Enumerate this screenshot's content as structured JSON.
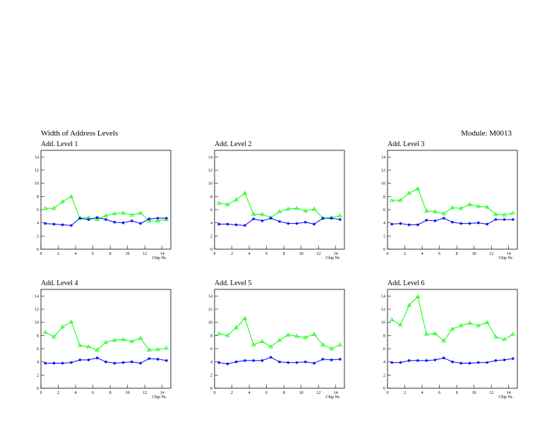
{
  "header": {
    "title": "Width of Address Levels",
    "module": "Module: M0013"
  },
  "chart_data": [
    {
      "type": "line",
      "title": "Add. Level 1",
      "xlabel": "Chip Nr.",
      "x": [
        0.5,
        1.5,
        2.5,
        3.5,
        4.5,
        5.5,
        6.5,
        7.5,
        8.5,
        9.5,
        10.5,
        11.5,
        12.5,
        13.5,
        14.5
      ],
      "xlim": [
        0,
        15
      ],
      "ylim": [
        0,
        15
      ],
      "xticks": [
        0,
        2,
        4,
        6,
        8,
        10,
        12,
        14
      ],
      "yticks": [
        0,
        2,
        4,
        6,
        8,
        10,
        12,
        14
      ],
      "series": [
        {
          "color": "#00ff00",
          "marker": "triangle",
          "values": [
            6.2,
            6.2,
            7.2,
            8.0,
            4.7,
            4.8,
            4.5,
            5.1,
            5.4,
            5.5,
            5.2,
            5.5,
            4.3,
            4.3,
            4.5
          ]
        },
        {
          "color": "#0000ff",
          "marker": "star",
          "values": [
            3.9,
            3.8,
            3.7,
            3.6,
            4.7,
            4.5,
            4.8,
            4.5,
            4.1,
            4.0,
            4.3,
            3.9,
            4.6,
            4.7,
            4.7
          ]
        }
      ]
    },
    {
      "type": "line",
      "title": "Add. Level 2",
      "xlabel": "Chip Nr.",
      "x": [
        0.5,
        1.5,
        2.5,
        3.5,
        4.5,
        5.5,
        6.5,
        7.5,
        8.5,
        9.5,
        10.5,
        11.5,
        12.5,
        13.5,
        14.5
      ],
      "xlim": [
        0,
        15
      ],
      "ylim": [
        0,
        15
      ],
      "xticks": [
        0,
        2,
        4,
        6,
        8,
        10,
        12,
        14
      ],
      "yticks": [
        0,
        2,
        4,
        6,
        8,
        10,
        12,
        14
      ],
      "series": [
        {
          "color": "#00ff00",
          "marker": "triangle",
          "values": [
            7.0,
            6.8,
            7.5,
            8.5,
            5.3,
            5.3,
            4.8,
            5.7,
            6.1,
            6.2,
            5.8,
            6.1,
            4.7,
            4.8,
            5.1
          ]
        },
        {
          "color": "#0000ff",
          "marker": "star",
          "values": [
            3.8,
            3.8,
            3.7,
            3.6,
            4.6,
            4.3,
            4.7,
            4.2,
            3.9,
            3.9,
            4.1,
            3.8,
            4.7,
            4.7,
            4.5
          ]
        }
      ]
    },
    {
      "type": "line",
      "title": "Add. Level 3",
      "xlabel": "Chip Nr.",
      "x": [
        0.5,
        1.5,
        2.5,
        3.5,
        4.5,
        5.5,
        6.5,
        7.5,
        8.5,
        9.5,
        10.5,
        11.5,
        12.5,
        13.5,
        14.5
      ],
      "xlim": [
        0,
        15
      ],
      "ylim": [
        0,
        15
      ],
      "xticks": [
        0,
        2,
        4,
        6,
        8,
        10,
        12,
        14
      ],
      "yticks": [
        0,
        2,
        4,
        6,
        8,
        10,
        12,
        14
      ],
      "series": [
        {
          "color": "#00ff00",
          "marker": "triangle",
          "values": [
            7.4,
            7.4,
            8.5,
            9.2,
            5.8,
            5.7,
            5.4,
            6.3,
            6.2,
            6.8,
            6.5,
            6.4,
            5.3,
            5.2,
            5.5
          ]
        },
        {
          "color": "#0000ff",
          "marker": "star",
          "values": [
            3.8,
            3.9,
            3.7,
            3.7,
            4.4,
            4.3,
            4.7,
            4.1,
            3.9,
            3.9,
            4.0,
            3.8,
            4.5,
            4.5,
            4.5
          ]
        }
      ]
    },
    {
      "type": "line",
      "title": "Add. Level 4",
      "xlabel": "Chip Nr.",
      "x": [
        0.5,
        1.5,
        2.5,
        3.5,
        4.5,
        5.5,
        6.5,
        7.5,
        8.5,
        9.5,
        10.5,
        11.5,
        12.5,
        13.5,
        14.5
      ],
      "xlim": [
        0,
        15
      ],
      "ylim": [
        0,
        15
      ],
      "xticks": [
        0,
        2,
        4,
        6,
        8,
        10,
        12,
        14
      ],
      "yticks": [
        0,
        2,
        4,
        6,
        8,
        10,
        12,
        14
      ],
      "series": [
        {
          "color": "#00ff00",
          "marker": "triangle",
          "values": [
            8.5,
            7.8,
            9.3,
            10.1,
            6.5,
            6.3,
            5.8,
            7.0,
            7.3,
            7.4,
            7.1,
            7.6,
            5.8,
            5.9,
            6.1
          ]
        },
        {
          "color": "#0000ff",
          "marker": "star",
          "values": [
            3.8,
            3.8,
            3.8,
            3.9,
            4.3,
            4.3,
            4.6,
            4.0,
            3.8,
            3.9,
            4.0,
            3.8,
            4.5,
            4.4,
            4.2
          ]
        }
      ]
    },
    {
      "type": "line",
      "title": "Add. Level 5",
      "xlabel": "Chip Nr.",
      "x": [
        0.5,
        1.5,
        2.5,
        3.5,
        4.5,
        5.5,
        6.5,
        7.5,
        8.5,
        9.5,
        10.5,
        11.5,
        12.5,
        13.5,
        14.5
      ],
      "xlim": [
        0,
        15
      ],
      "ylim": [
        0,
        15
      ],
      "xticks": [
        0,
        2,
        4,
        6,
        8,
        10,
        12,
        14
      ],
      "yticks": [
        0,
        2,
        4,
        6,
        8,
        10,
        12,
        14
      ],
      "series": [
        {
          "color": "#00ff00",
          "marker": "triangle",
          "values": [
            8.3,
            8.0,
            9.2,
            10.6,
            6.6,
            7.1,
            6.3,
            7.3,
            8.1,
            7.9,
            7.7,
            8.2,
            6.6,
            6.0,
            6.6
          ]
        },
        {
          "color": "#0000ff",
          "marker": "star",
          "values": [
            3.9,
            3.7,
            4.0,
            4.2,
            4.2,
            4.2,
            4.7,
            4.0,
            3.9,
            3.9,
            4.0,
            3.8,
            4.4,
            4.3,
            4.4
          ]
        }
      ]
    },
    {
      "type": "line",
      "title": "Add. Level 6",
      "xlabel": "Chip Nr.",
      "x": [
        0.5,
        1.5,
        2.5,
        3.5,
        4.5,
        5.5,
        6.5,
        7.5,
        8.5,
        9.5,
        10.5,
        11.5,
        12.5,
        13.5,
        14.5
      ],
      "xlim": [
        0,
        15
      ],
      "ylim": [
        0,
        15
      ],
      "xticks": [
        0,
        2,
        4,
        6,
        8,
        10,
        12,
        14
      ],
      "yticks": [
        0,
        2,
        4,
        6,
        8,
        10,
        12,
        14
      ],
      "series": [
        {
          "color": "#00ff00",
          "marker": "triangle",
          "values": [
            10.4,
            9.6,
            12.6,
            13.9,
            8.2,
            8.3,
            7.2,
            9.0,
            9.5,
            9.9,
            9.5,
            10.0,
            7.8,
            7.4,
            8.2
          ]
        },
        {
          "color": "#0000ff",
          "marker": "star",
          "values": [
            3.9,
            3.9,
            4.2,
            4.2,
            4.2,
            4.3,
            4.6,
            4.0,
            3.8,
            3.8,
            3.9,
            3.9,
            4.2,
            4.3,
            4.5
          ]
        }
      ]
    }
  ]
}
